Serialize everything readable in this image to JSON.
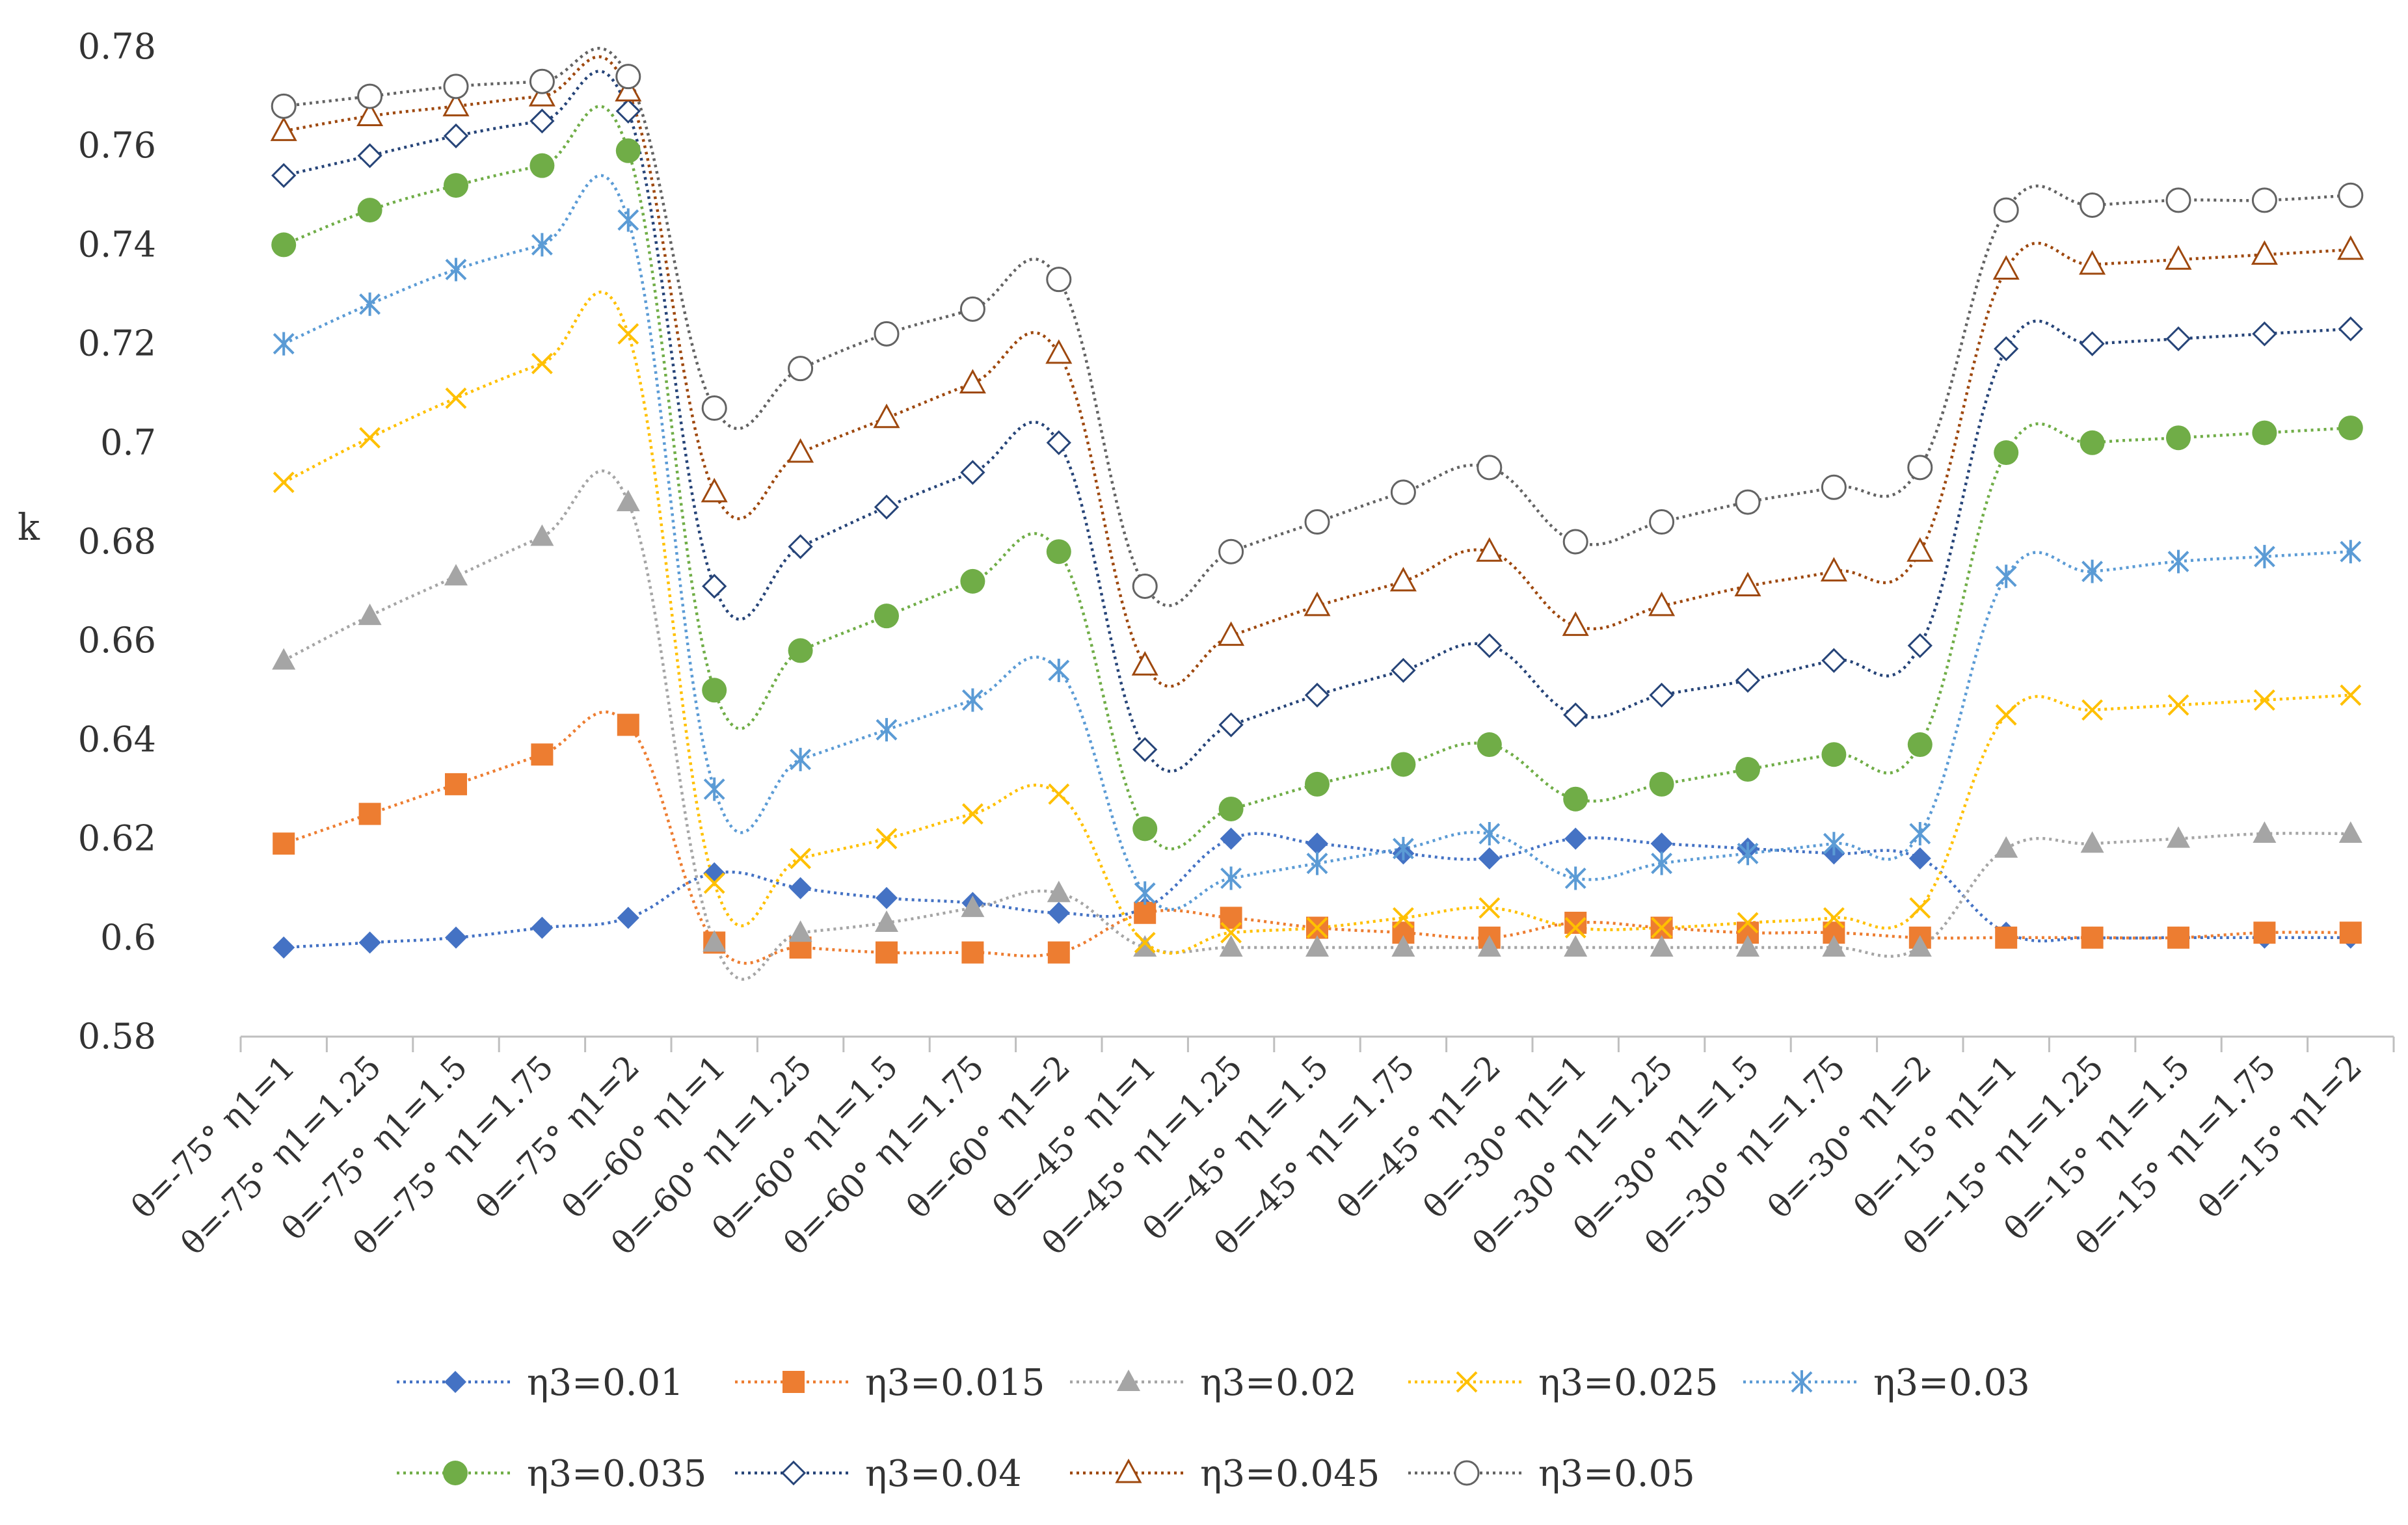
{
  "chart_data": {
    "type": "line",
    "title": "",
    "xlabel": "",
    "ylabel": "k",
    "ylim": [
      0.58,
      0.78
    ],
    "yticks": [
      "0.58",
      "0.6",
      "0.62",
      "0.64",
      "0.66",
      "0.68",
      "0.7",
      "0.72",
      "0.74",
      "0.76",
      "0.78"
    ],
    "grid": false,
    "legend_position": "bottom",
    "categories": [
      "θ=-75° η1=1",
      "θ=-75° η1=1.25",
      "θ=-75° η1=1.5",
      "θ=-75° η1=1.75",
      "θ=-75° η1=2",
      "θ=-60° η1=1",
      "θ=-60° η1=1.25",
      "θ=-60° η1=1.5",
      "θ=-60° η1=1.75",
      "θ=-60° η1=2",
      "θ=-45° η1=1",
      "θ=-45° η1=1.25",
      "θ=-45° η1=1.5",
      "θ=-45° η1=1.75",
      "θ=-45° η1=2",
      "θ=-30° η1=1",
      "θ=-30° η1=1.25",
      "θ=-30° η1=1.5",
      "θ=-30° η1=1.75",
      "θ=-30° η1=2",
      "θ=-15° η1=1",
      "θ=-15° η1=1.25",
      "θ=-15° η1=1.5",
      "θ=-15° η1=1.75",
      "θ=-15° η1=2"
    ],
    "series": [
      {
        "name": "η3=0.01",
        "color": "#4472C4",
        "marker": "diamond",
        "values": [
          0.598,
          0.599,
          0.6,
          0.602,
          0.604,
          0.613,
          0.61,
          0.608,
          0.607,
          0.605,
          0.606,
          0.62,
          0.619,
          0.617,
          0.616,
          0.62,
          0.619,
          0.618,
          0.617,
          0.616,
          0.601,
          0.6,
          0.6,
          0.6,
          0.6
        ]
      },
      {
        "name": "η3=0.015",
        "color": "#ED7D31",
        "marker": "square",
        "values": [
          0.619,
          0.625,
          0.631,
          0.637,
          0.643,
          0.599,
          0.598,
          0.597,
          0.597,
          0.597,
          0.605,
          0.604,
          0.602,
          0.601,
          0.6,
          0.603,
          0.602,
          0.601,
          0.601,
          0.6,
          0.6,
          0.6,
          0.6,
          0.601,
          0.601
        ]
      },
      {
        "name": "η3=0.02",
        "color": "#A5A5A5",
        "marker": "triangle",
        "values": [
          0.656,
          0.665,
          0.673,
          0.681,
          0.688,
          0.599,
          0.601,
          0.603,
          0.606,
          0.609,
          0.598,
          0.598,
          0.598,
          0.598,
          0.598,
          0.598,
          0.598,
          0.598,
          0.598,
          0.598,
          0.618,
          0.619,
          0.62,
          0.621,
          0.621
        ]
      },
      {
        "name": "η3=0.025",
        "color": "#FFC000",
        "marker": "x",
        "values": [
          0.692,
          0.701,
          0.709,
          0.716,
          0.722,
          0.611,
          0.616,
          0.62,
          0.625,
          0.629,
          0.599,
          0.601,
          0.602,
          0.604,
          0.606,
          0.602,
          0.602,
          0.603,
          0.604,
          0.606,
          0.645,
          0.646,
          0.647,
          0.648,
          0.649
        ]
      },
      {
        "name": "η3=0.03",
        "color": "#5B9BD5",
        "marker": "star",
        "values": [
          0.72,
          0.728,
          0.735,
          0.74,
          0.745,
          0.63,
          0.636,
          0.642,
          0.648,
          0.654,
          0.609,
          0.612,
          0.615,
          0.618,
          0.621,
          0.612,
          0.615,
          0.617,
          0.619,
          0.621,
          0.673,
          0.674,
          0.676,
          0.677,
          0.678
        ]
      },
      {
        "name": "η3=0.035",
        "color": "#70AD47",
        "marker": "circle",
        "values": [
          0.74,
          0.747,
          0.752,
          0.756,
          0.759,
          0.65,
          0.658,
          0.665,
          0.672,
          0.678,
          0.622,
          0.626,
          0.631,
          0.635,
          0.639,
          0.628,
          0.631,
          0.634,
          0.637,
          0.639,
          0.698,
          0.7,
          0.701,
          0.702,
          0.703
        ]
      },
      {
        "name": "η3=0.04",
        "color": "#264478",
        "marker": "diamond-open",
        "values": [
          0.754,
          0.758,
          0.762,
          0.765,
          0.767,
          0.671,
          0.679,
          0.687,
          0.694,
          0.7,
          0.638,
          0.643,
          0.649,
          0.654,
          0.659,
          0.645,
          0.649,
          0.652,
          0.656,
          0.659,
          0.719,
          0.72,
          0.721,
          0.722,
          0.723
        ]
      },
      {
        "name": "η3=0.045",
        "color": "#9E480E",
        "marker": "triangle-open",
        "values": [
          0.763,
          0.766,
          0.768,
          0.77,
          0.771,
          0.69,
          0.698,
          0.705,
          0.712,
          0.718,
          0.655,
          0.661,
          0.667,
          0.672,
          0.678,
          0.663,
          0.667,
          0.671,
          0.674,
          0.678,
          0.735,
          0.736,
          0.737,
          0.738,
          0.739
        ]
      },
      {
        "name": "η3=0.05",
        "color": "#636363",
        "marker": "circle-open",
        "values": [
          0.768,
          0.77,
          0.772,
          0.773,
          0.774,
          0.707,
          0.715,
          0.722,
          0.727,
          0.733,
          0.671,
          0.678,
          0.684,
          0.69,
          0.695,
          0.68,
          0.684,
          0.688,
          0.691,
          0.695,
          0.747,
          0.748,
          0.749,
          0.749,
          0.75
        ]
      }
    ]
  }
}
